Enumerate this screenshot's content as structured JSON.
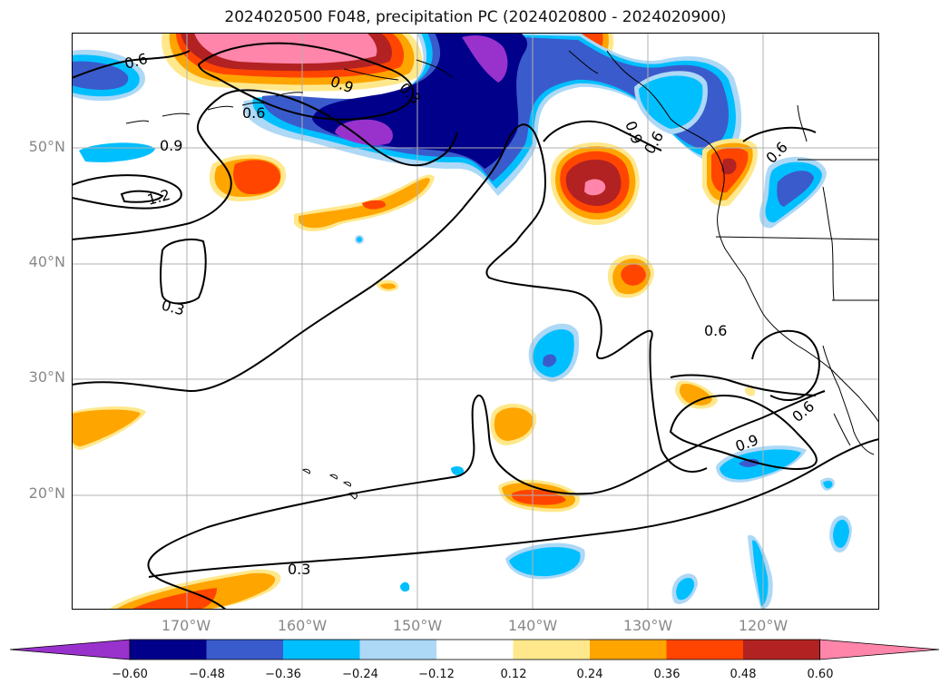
{
  "figure": {
    "title": "2024020500 F048, precipitation PC (2024020800 - 2024020900)"
  },
  "axes": {
    "lat_labels": [
      "20°N",
      "30°N",
      "40°N",
      "50°N"
    ],
    "lon_labels": [
      "170°W",
      "160°W",
      "150°W",
      "140°W",
      "130°W",
      "120°W"
    ],
    "contour_labels": [
      "0.6",
      "0.9",
      "1.2",
      "0.3",
      "0.9",
      "0.3",
      "0.6",
      "0.9",
      "0.6",
      "0.6",
      "0.6",
      "0.9",
      "0.6",
      "0.3"
    ]
  },
  "colorbar": {
    "ticks": [
      "−0.60",
      "−0.48",
      "−0.36",
      "−0.24",
      "−0.12",
      "0.12",
      "0.24",
      "0.36",
      "0.48",
      "0.60"
    ],
    "colors": [
      "#9932CC",
      "#00008B",
      "#3A5BCC",
      "#00BFFF",
      "#ADD8F6",
      "#FFFFFF",
      "#FFE88C",
      "#FFA500",
      "#FF4500",
      "#B22222",
      "#FF85AA"
    ]
  },
  "colors": {
    "coast": "#000000",
    "grid": "#b0b0b0"
  }
}
